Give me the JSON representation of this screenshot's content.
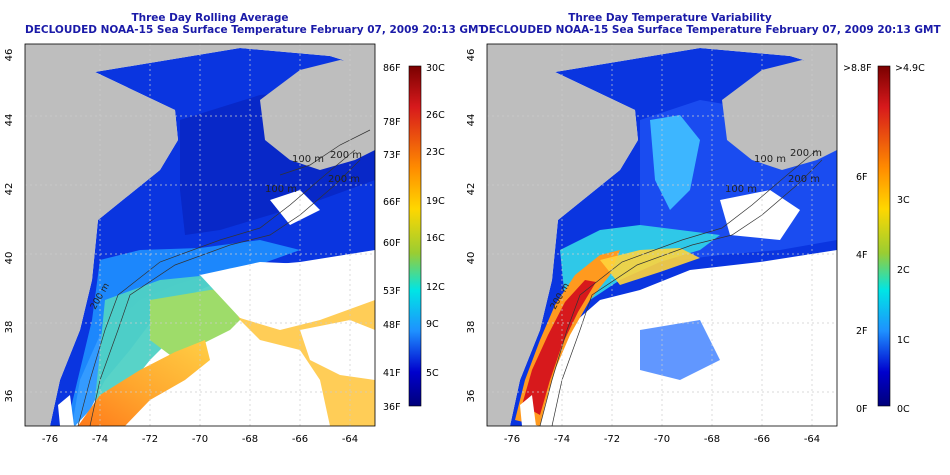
{
  "panels": [
    {
      "title1": "Three Day Rolling Average",
      "title2": "DECLOUDED NOAA-15 Sea Surface Temperature February 07, 2009 20:13 GMT",
      "lat_ticks": [
        "46",
        "44",
        "42",
        "40",
        "38",
        "36"
      ],
      "lon_ticks": [
        "-76",
        "-74",
        "-72",
        "-70",
        "-68",
        "-66",
        "-64"
      ],
      "contours": [
        "100 m",
        "200 m",
        "100 m",
        "200 m",
        "200 m"
      ],
      "colorbar": {
        "left_labels": [
          "86F",
          "78F",
          "73F",
          "66F",
          "60F",
          "53F",
          "48F",
          "41F",
          "36F"
        ],
        "right_labels": [
          "30C",
          "26C",
          "23C",
          "19C",
          "16C",
          "12C",
          "9C",
          "5C"
        ],
        "colors": [
          "#8b0000",
          "#e31a1c",
          "#ff7f00",
          "#ffd700",
          "#9acd32",
          "#00ffff",
          "#1e90ff",
          "#0000cd",
          "#00008b"
        ]
      }
    },
    {
      "title1": "Three Day Temperature Variability",
      "title2": "DECLOUDED NOAA-15 Sea Surface Temperature February 07, 2009 20:13 GMT",
      "lat_ticks": [
        "46",
        "44",
        "42",
        "40",
        "38",
        "36"
      ],
      "lon_ticks": [
        "-76",
        "-74",
        "-72",
        "-70",
        "-68",
        "-66",
        "-64"
      ],
      "contours": [
        "100 m",
        "100 m",
        "200 m",
        "200 m",
        "200 m"
      ],
      "colorbar": {
        "left_labels": [
          ">8.8F",
          "6F",
          "4F",
          "2F",
          "0F"
        ],
        "right_labels": [
          ">4.9C",
          "3C",
          "2C",
          "1C",
          "0C"
        ],
        "colors": [
          "#8b0000",
          "#e31a1c",
          "#ff7f00",
          "#ffd700",
          "#9acd32",
          "#00ffff",
          "#1e90ff",
          "#0000cd",
          "#00008b"
        ]
      }
    }
  ],
  "colors": {
    "land": "#bebebe",
    "title": "#1a1aa8",
    "deep_blue": "#0a2fd6",
    "mid_blue": "#1e60ff"
  }
}
